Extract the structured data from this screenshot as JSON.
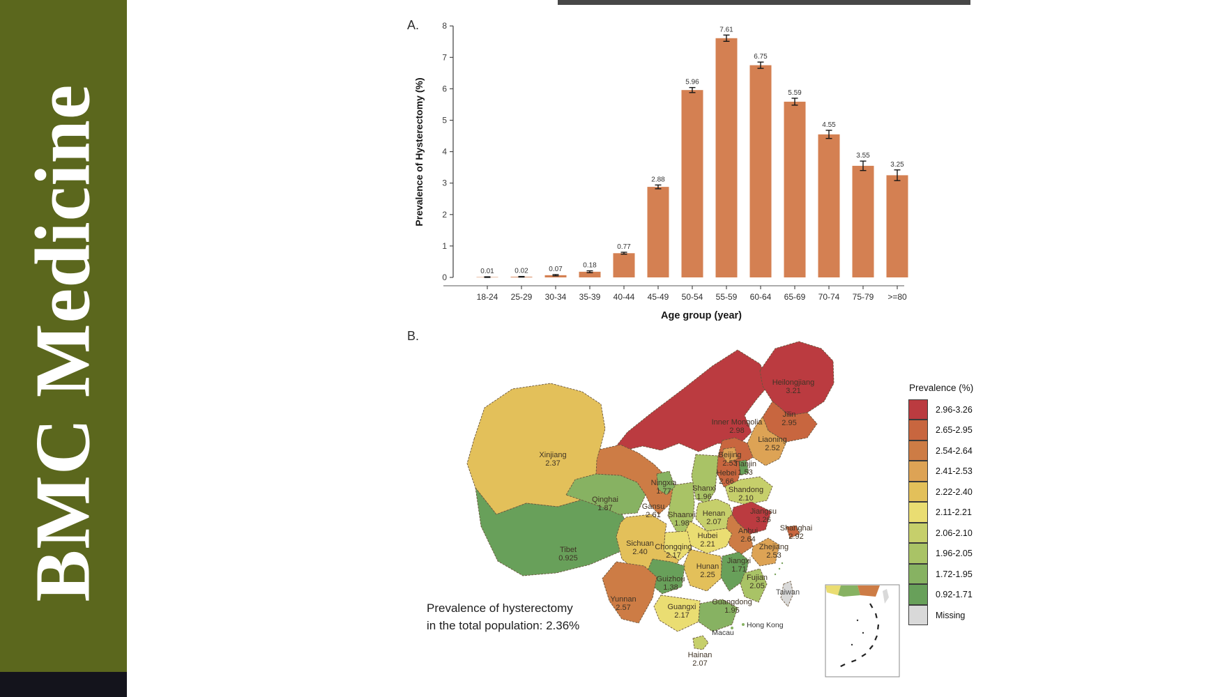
{
  "journal": {
    "name": "BMC Medicine",
    "banner_color": "#5b671d",
    "banner_text_color": "#ffffff"
  },
  "panels": {
    "a_label": "A.",
    "b_label": "B."
  },
  "annotation": {
    "line1": "Prevalence of hysterectomy",
    "line2": "in the total population: 2.36%"
  },
  "legend": {
    "title": "Prevalence (%)"
  },
  "chart_data": [
    {
      "type": "bar",
      "panel": "A",
      "categories": [
        "18-24",
        "25-29",
        "30-34",
        "35-39",
        "40-44",
        "45-49",
        "50-54",
        "55-59",
        "60-64",
        "65-69",
        "70-74",
        "75-79",
        ">=80"
      ],
      "values": [
        0.01,
        0.02,
        0.07,
        0.18,
        0.77,
        2.88,
        5.96,
        7.61,
        6.75,
        5.59,
        4.55,
        3.55,
        3.25
      ],
      "value_labels": [
        "0.01",
        "0.02",
        "0.07",
        "0.18",
        "0.77",
        "2.88",
        "5.96",
        "7.61",
        "6.75",
        "5.59",
        "4.55",
        "3.55",
        "3.25"
      ],
      "error_bars": [
        0.01,
        0.01,
        0.02,
        0.03,
        0.03,
        0.06,
        0.08,
        0.1,
        0.1,
        0.11,
        0.13,
        0.15,
        0.17
      ],
      "xlabel": "Age group (year)",
      "ylabel": "Prevalence of Hysterectomy (%)",
      "ylim": [
        0,
        8
      ],
      "ytick_step": 1,
      "grid": false,
      "bar_color": "#d48052",
      "error_color": "#161616"
    },
    {
      "type": "heatmap",
      "subtype": "choropleth",
      "panel": "B",
      "region": "China, province level",
      "legend_title": "Prevalence (%)",
      "annotation": "Prevalence of hysterectomy in the total population: 2.36%",
      "legend_position": "right",
      "legend_classes": [
        {
          "range": "2.96-3.26",
          "color": "#bb3b40"
        },
        {
          "range": "2.65-2.95",
          "color": "#c8663f"
        },
        {
          "range": "2.54-2.64",
          "color": "#cd7c45"
        },
        {
          "range": "2.41-2.53",
          "color": "#dda355"
        },
        {
          "range": "2.22-2.40",
          "color": "#e3c05a"
        },
        {
          "range": "2.11-2.21",
          "color": "#eadd72"
        },
        {
          "range": "2.06-2.10",
          "color": "#c6cf6b"
        },
        {
          "range": "1.96-2.05",
          "color": "#a9c366"
        },
        {
          "range": "1.72-1.95",
          "color": "#87b262"
        },
        {
          "range": "0.92-1.71",
          "color": "#68a05a"
        },
        {
          "range": "Missing",
          "color": "#d9d9d9"
        }
      ],
      "entries": [
        {
          "province": "Xinjiang",
          "value": "2.37",
          "class": "2.22-2.40"
        },
        {
          "province": "Tibet",
          "value": "0.925",
          "class": "0.92-1.71"
        },
        {
          "province": "Qinghai",
          "value": "1.87",
          "class": "1.72-1.95"
        },
        {
          "province": "Inner Mongolia",
          "value": "2.98",
          "class": "2.96-3.26"
        },
        {
          "province": "Gansu",
          "value": "2.61",
          "class": "2.54-2.64"
        },
        {
          "province": "Heilongjiang",
          "value": "3.21",
          "class": "2.96-3.26"
        },
        {
          "province": "Jilin",
          "value": "2.95",
          "class": "2.65-2.95"
        },
        {
          "province": "Liaoning",
          "value": "2.52",
          "class": "2.41-2.53"
        },
        {
          "province": "Hebei",
          "value": "2.66",
          "class": "2.65-2.95"
        },
        {
          "province": "Shanxi",
          "value": "1.96",
          "class": "1.96-2.05"
        },
        {
          "province": "Shaanxi",
          "value": "1.98",
          "class": "1.96-2.05"
        },
        {
          "province": "Shandong",
          "value": "2.10",
          "class": "2.06-2.10"
        },
        {
          "province": "Henan",
          "value": "2.07",
          "class": "2.06-2.10"
        },
        {
          "province": "Jiangsu",
          "value": "3.26",
          "class": "2.96-3.26"
        },
        {
          "province": "Anhui",
          "value": "2.64",
          "class": "2.54-2.64"
        },
        {
          "province": "Hubei",
          "value": "2.21",
          "class": "2.11-2.21"
        },
        {
          "province": "Chongqing",
          "value": "2.17",
          "class": "2.11-2.21"
        },
        {
          "province": "Sichuan",
          "value": "2.40",
          "class": "2.22-2.40"
        },
        {
          "province": "Hunan",
          "value": "2.25",
          "class": "2.22-2.40"
        },
        {
          "province": "Jiangxi",
          "value": "1.71",
          "class": "0.92-1.71"
        },
        {
          "province": "Guizhou",
          "value": "1.38",
          "class": "0.92-1.71"
        },
        {
          "province": "Zhejiang",
          "value": "2.53",
          "class": "2.41-2.53"
        },
        {
          "province": "Fujian",
          "value": "2.05",
          "class": "1.96-2.05"
        },
        {
          "province": "Yunnan",
          "value": "2.57",
          "class": "2.54-2.64"
        },
        {
          "province": "Guangxi",
          "value": "2.17",
          "class": "2.11-2.21"
        },
        {
          "province": "Guangdong",
          "value": "1.95",
          "class": "1.72-1.95"
        },
        {
          "province": "Hainan",
          "value": "2.07",
          "class": "2.06-2.10"
        },
        {
          "province": "Taiwan",
          "value": "",
          "class": "Missing"
        },
        {
          "province": "Ningxia",
          "value": "1.77",
          "class": "1.72-1.95"
        },
        {
          "province": "Beijing",
          "value": "2.53",
          "class": "2.41-2.53"
        },
        {
          "province": "Tianjin",
          "value": "1.53",
          "class": "0.92-1.71"
        },
        {
          "province": "Shanghai",
          "value": "2.92",
          "class": "2.65-2.95"
        }
      ],
      "city_labels": [
        "Hong Kong",
        "Macau"
      ]
    }
  ]
}
